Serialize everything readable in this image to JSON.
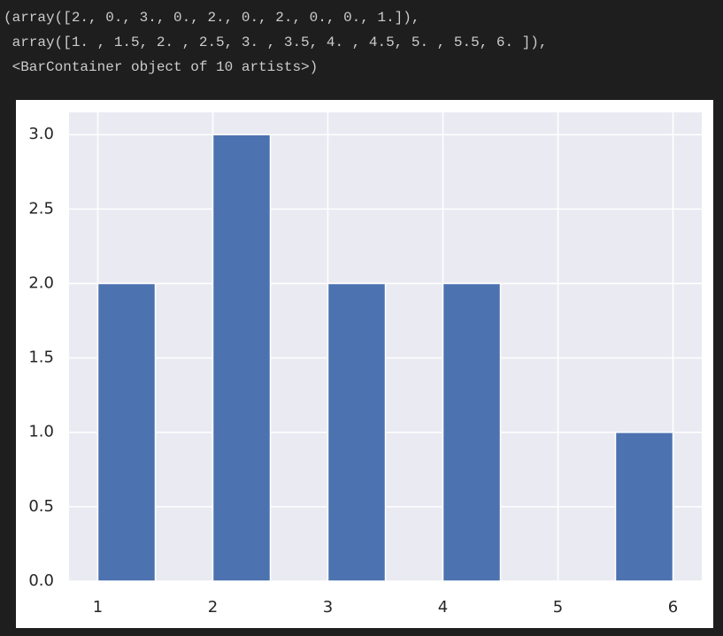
{
  "output_lines": [
    "(array([2., 0., 3., 0., 2., 0., 2., 0., 0., 1.]),",
    " array([1. , 1.5, 2. , 2.5, 3. , 3.5, 4. , 4.5, 5. , 5.5, 6. ]),",
    " <BarContainer object of 10 artists>)"
  ],
  "chart_data": {
    "type": "histogram",
    "bins": [
      1,
      1.5,
      2,
      2.5,
      3,
      3.5,
      4,
      4.5,
      5,
      5.5,
      6
    ],
    "values": [
      2,
      0,
      3,
      0,
      2,
      0,
      2,
      0,
      0,
      1
    ],
    "color": "#4c72b0",
    "xlim": [
      0.75,
      6.25
    ],
    "xticks": [
      1,
      2,
      3,
      4,
      5,
      6
    ],
    "ylim": [
      0,
      3.15
    ],
    "yticks": [
      {
        "value": 0,
        "label": "0.0"
      },
      {
        "value": 0.5,
        "label": "0.5"
      },
      {
        "value": 1,
        "label": "1.0"
      },
      {
        "value": 1.5,
        "label": "1.5"
      },
      {
        "value": 2,
        "label": "2.0"
      },
      {
        "value": 2.5,
        "label": "2.5"
      },
      {
        "value": 3,
        "label": "3.0"
      }
    ],
    "grid": true
  }
}
